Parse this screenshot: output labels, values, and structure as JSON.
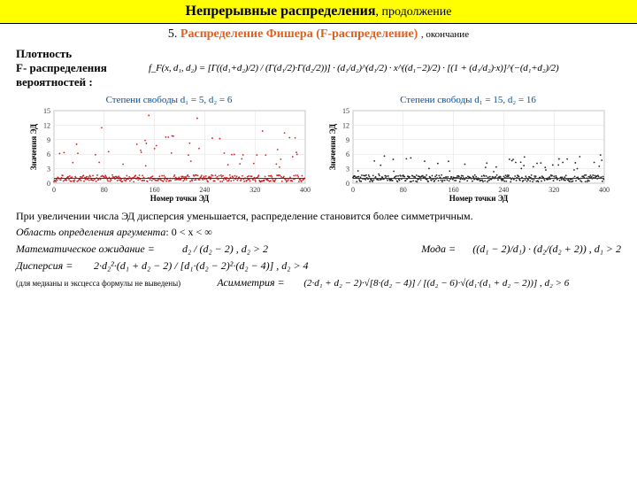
{
  "header": {
    "main": "Непрерывные распределения",
    "cont": ", продолжение"
  },
  "sub": {
    "num": "5.",
    "title": "Распределение Фишера (F-распределение)",
    "tail": ", окончание"
  },
  "pdf_label": "Плотность\nF- распределения\nвероятностей :",
  "pdf_formula": "f_F(x, d₁, d₂) = [Γ((d₁+d₂)/2) / (Γ(d₁/2)·Γ(d₂/2))] · (d₁/d₂)^(d₁/2) · x^((d₁−2)/2) · [(1 + (d₁/d₂)·x)]^(−(d₁+d₂)/2)",
  "chart_left": {
    "title": "Степени свободы d₁ = 5, d₂ = 6",
    "xlabel": "Номер точки ЭД",
    "ylabel": "Значения ЭД",
    "xmin": 0,
    "xmax": 400,
    "ymin": 0,
    "ymax": 15,
    "xticks": [
      0,
      80,
      160,
      240,
      320,
      400
    ],
    "yticks": [
      0,
      3,
      6,
      9,
      12,
      15
    ],
    "scatter_color": "#d02020",
    "line_color": "#2030c0",
    "baseline": 1.0,
    "spread": 6.5
  },
  "chart_right": {
    "title": "Степени свободы d₁ = 15, d₂ = 16",
    "xlabel": "Номер точки ЭД",
    "ylabel": "Значения ЭД",
    "xmin": 0,
    "xmax": 400,
    "ymin": 0,
    "ymax": 15,
    "xticks": [
      0,
      80,
      160,
      240,
      320,
      400
    ],
    "yticks": [
      0,
      3,
      6,
      9,
      12,
      15
    ],
    "scatter_color": "#202020",
    "line_color": "#2030c0",
    "baseline": 1.0,
    "spread": 2.8
  },
  "text_after_charts": "При увеличении числа ЭД дисперсия уменьшается, распределение становится более симметричным.",
  "domain_line": {
    "prefix": "Область определения аргумента",
    "expr": ": 0 < x < ∞"
  },
  "mean": {
    "label": "Математическое ожидание =",
    "expr": "d₂ / (d₂ − 2) ,  d₂ > 2"
  },
  "mode": {
    "label": "Мода =",
    "expr": "((d₁ − 2)/d₁) · (d₂/(d₂ + 2)) ,  d₁ > 2"
  },
  "variance": {
    "label": "Дисперсия =",
    "expr": "2·d₂²·(d₁ + d₂ − 2) / [d₁·(d₂ − 2)²·(d₂ − 4)] ,  d₂ > 4"
  },
  "note": "(для медианы и эксцесса формулы не выведены)",
  "skew": {
    "label": "Асимметрия =",
    "expr": "(2·d₁ + d₂ − 2)·√[8·(d₂ − 4)] / [(d₂ − 6)·√(d₁·(d₁ + d₂ − 2))] ,  d₂ > 6"
  }
}
